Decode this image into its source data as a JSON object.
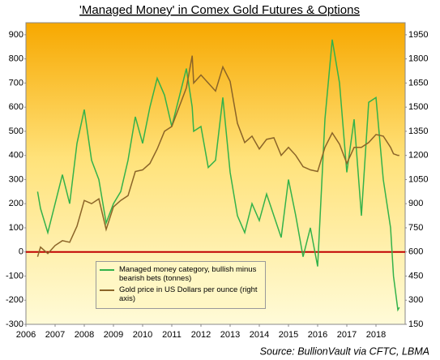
{
  "chart_data": {
    "type": "line",
    "title": "'Managed Money' in Comex Gold Futures & Options",
    "source": "Source: BullionVault via CFTC, LBMA",
    "x": [
      2006.4,
      2006.5,
      2006.75,
      2007.0,
      2007.25,
      2007.5,
      2007.75,
      2008.0,
      2008.25,
      2008.5,
      2008.75,
      2009.0,
      2009.25,
      2009.5,
      2009.75,
      2010.0,
      2010.25,
      2010.5,
      2010.75,
      2011.0,
      2011.25,
      2011.5,
      2011.7,
      2011.75,
      2012.0,
      2012.25,
      2012.5,
      2012.75,
      2013.0,
      2013.25,
      2013.5,
      2013.75,
      2014.0,
      2014.25,
      2014.5,
      2014.75,
      2015.0,
      2015.25,
      2015.5,
      2015.75,
      2016.0,
      2016.25,
      2016.5,
      2016.75,
      2017.0,
      2017.25,
      2017.5,
      2017.75,
      2018.0,
      2018.25,
      2018.5,
      2018.6,
      2018.75,
      2018.8
    ],
    "series": [
      {
        "name": "Managed money category, bullish minus bearish bets (tonnes)",
        "color": "#33b24a",
        "values": [
          250,
          180,
          80,
          200,
          320,
          200,
          450,
          590,
          380,
          300,
          120,
          200,
          250,
          380,
          560,
          450,
          600,
          720,
          650,
          520,
          640,
          760,
          600,
          500,
          520,
          350,
          380,
          640,
          330,
          150,
          80,
          200,
          130,
          240,
          150,
          60,
          300,
          150,
          -20,
          100,
          -60,
          550,
          880,
          700,
          330,
          550,
          150,
          620,
          640,
          300,
          100,
          -100,
          -240,
          -230
        ]
      },
      {
        "name": "Gold price in US Dollars per ounce (right axis)",
        "color": "#8b6428",
        "axis": "y2",
        "values": [
          570,
          630,
          590,
          640,
          670,
          660,
          760,
          920,
          900,
          930,
          740,
          880,
          920,
          950,
          1100,
          1110,
          1150,
          1240,
          1350,
          1380,
          1500,
          1620,
          1820,
          1650,
          1700,
          1650,
          1600,
          1750,
          1660,
          1400,
          1280,
          1320,
          1240,
          1300,
          1310,
          1200,
          1250,
          1200,
          1130,
          1110,
          1100,
          1250,
          1340,
          1270,
          1150,
          1250,
          1250,
          1280,
          1330,
          1320,
          1250,
          1210,
          1200,
          1200
        ]
      }
    ],
    "xlim": [
      2006,
      2019
    ],
    "xticks": [
      2006,
      2007,
      2008,
      2009,
      2010,
      2011,
      2012,
      2013,
      2014,
      2015,
      2016,
      2017,
      2018
    ],
    "ylim": [
      -300,
      950
    ],
    "yticks": [
      -300,
      -200,
      -100,
      0,
      100,
      200,
      300,
      400,
      500,
      600,
      700,
      800,
      900
    ],
    "y2lim": [
      150,
      2025
    ],
    "y2ticks": [
      150,
      300,
      450,
      600,
      750,
      900,
      1050,
      1200,
      1350,
      1500,
      1650,
      1800,
      1950
    ],
    "reference_line": {
      "value": 0,
      "color": "#c00000"
    },
    "legend": "lower-left"
  }
}
